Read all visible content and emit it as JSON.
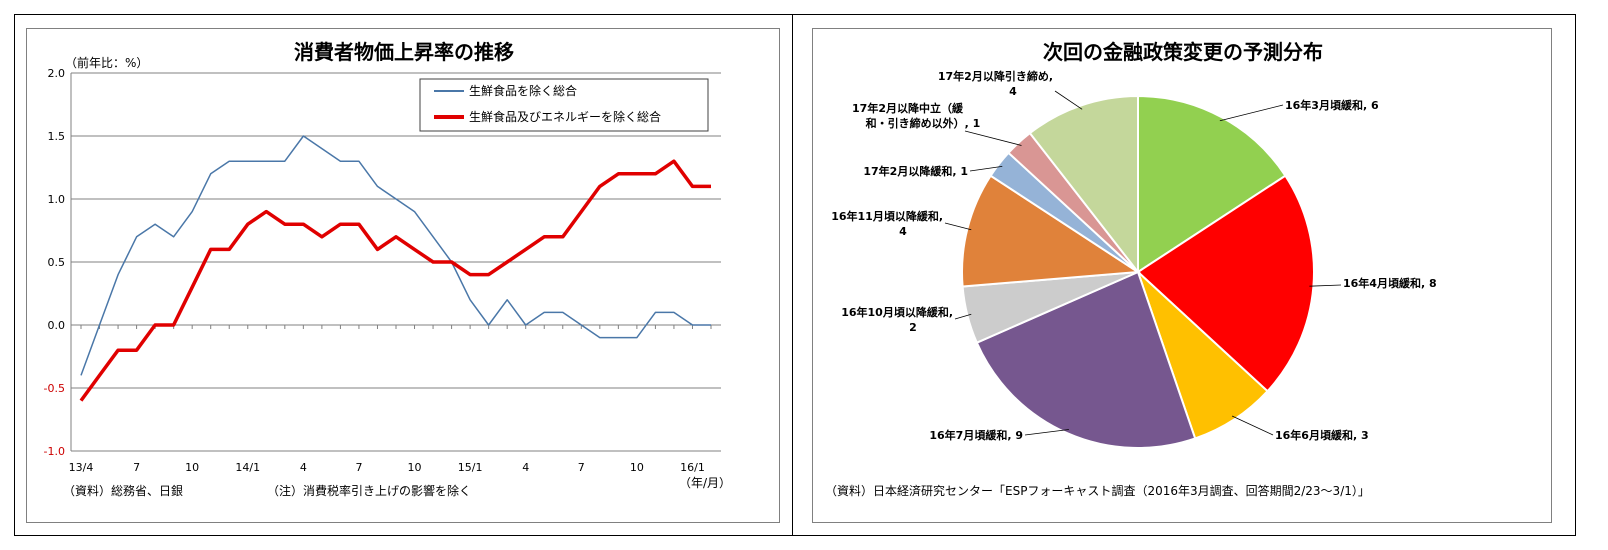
{
  "chart_data": [
    {
      "type": "line",
      "title": "消費者物価上昇率の推移",
      "ylabel": "（前年比：%）",
      "xlabel": "（年/月）",
      "ylim": [
        -1.0,
        2.0
      ],
      "y_ticks": [
        "2.0",
        "1.5",
        "1.0",
        "0.5",
        "0.0",
        "-0.5",
        "-1.0"
      ],
      "x_ticks": [
        "13/4",
        "7",
        "10",
        "14/1",
        "4",
        "7",
        "10",
        "15/1",
        "4",
        "7",
        "10",
        "16/1"
      ],
      "grid": true,
      "legend_position": "top-right",
      "colors": {
        "core": "#4a77a8",
        "core_core": "#e00000"
      },
      "series": [
        {
          "name": "生鮮食品を除く総合",
          "values": [
            -0.4,
            0.0,
            0.4,
            0.7,
            0.8,
            0.7,
            0.9,
            1.2,
            1.3,
            1.3,
            1.3,
            1.3,
            1.5,
            1.4,
            1.3,
            1.3,
            1.1,
            1.0,
            0.9,
            0.7,
            0.5,
            0.2,
            0.0,
            0.2,
            0.0,
            0.1,
            0.1,
            0.0,
            -0.1,
            -0.1,
            -0.1,
            0.1,
            0.1,
            0.0,
            0.0
          ]
        },
        {
          "name": "生鮮食品及びエネルギーを除く総合",
          "values": [
            -0.6,
            -0.4,
            -0.2,
            -0.2,
            0.0,
            0.0,
            0.3,
            0.6,
            0.6,
            0.8,
            0.9,
            0.8,
            0.8,
            0.7,
            0.8,
            0.8,
            0.6,
            0.7,
            0.6,
            0.5,
            0.5,
            0.4,
            0.4,
            0.5,
            0.6,
            0.7,
            0.7,
            0.9,
            1.1,
            1.2,
            1.2,
            1.2,
            1.3,
            1.1,
            1.1
          ]
        }
      ]
    },
    {
      "type": "pie",
      "title": "次回の金融政策変更の予測分布",
      "slices": [
        {
          "label": "16年3月頃緩和, 6",
          "value": 6,
          "color": "#92d050"
        },
        {
          "label": "16年4月頃緩和, 8",
          "value": 8,
          "color": "#ff0000"
        },
        {
          "label": "16年6月頃緩和, 3",
          "value": 3,
          "color": "#ffc000"
        },
        {
          "label": "16年7月頃緩和, 9",
          "value": 9,
          "color": "#76578f"
        },
        {
          "label_lines": [
            "16年10月頃以降緩和,",
            "2"
          ],
          "value": 2,
          "color": "#cccccc"
        },
        {
          "label_lines": [
            "16年11月頃以降緩和,",
            "4"
          ],
          "value": 4,
          "color": "#e0823a"
        },
        {
          "label": "17年2月以降緩和, 1",
          "value": 1,
          "color": "#95b3d7"
        },
        {
          "label_lines": [
            "17年2月以降中立（緩",
            "和・引き締め以外）, 1"
          ],
          "value": 1,
          "color": "#d99694"
        },
        {
          "label_lines": [
            "17年2月以降引き締め,",
            "4"
          ],
          "value": 4,
          "color": "#c4d79b"
        }
      ]
    }
  ],
  "left_notes": {
    "source": "（資料）総務省、日銀",
    "note": "（注）消費税率引き上げの影響を除く"
  },
  "right_notes": {
    "source": "（資料）日本経済研究センター「ESPフォーキャスト調査（2016年3月調査、回答期間2/23～3/1）」"
  }
}
